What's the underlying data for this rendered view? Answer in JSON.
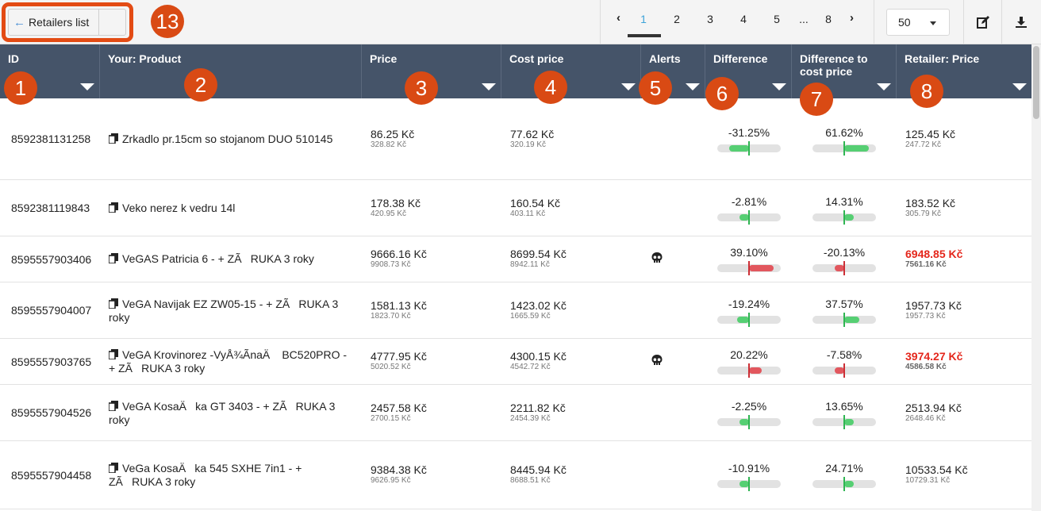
{
  "toolbar": {
    "back_label": "Retailers list",
    "per_page": "50",
    "pages": [
      "1",
      "2",
      "3",
      "4",
      "5",
      "...",
      "8"
    ],
    "active_page": "1"
  },
  "markers": [
    "1",
    "2",
    "3",
    "4",
    "5",
    "6",
    "7",
    "8",
    "13"
  ],
  "columns": [
    "ID",
    "Your: Product",
    "Price",
    "Cost price",
    "Alerts",
    "Difference",
    "Difference to cost price",
    "Retailer: Price"
  ],
  "colors": {
    "header": "#455469",
    "marker": "#d94a14",
    "positive": "#56cf73",
    "negative": "#e2575e",
    "alert_price": "#e4261b"
  },
  "rows": [
    {
      "id": "8592381131258",
      "product": "Zrkadlo pr.15cm so stojanom DUO 510145",
      "price": "86.25 Kč",
      "price_sub": "328.82 Kč",
      "cost": "77.62 Kč",
      "cost_sub": "320.19 Kč",
      "alert": "",
      "diff": "-31.25%",
      "diff_value": -31.25,
      "dcost": "61.62%",
      "dcost_value": 61.62,
      "retailer_price": "125.45 Kč",
      "retailer_sub": "247.72 Kč",
      "retailer_alert": false
    },
    {
      "id": "8592381119843",
      "product": "Veko nerez k vedru 14l",
      "price": "178.38 Kč",
      "price_sub": "420.95 Kč",
      "cost": "160.54 Kč",
      "cost_sub": "403.11 Kč",
      "alert": "",
      "diff": "-2.81%",
      "diff_value": -2.81,
      "dcost": "14.31%",
      "dcost_value": 14.31,
      "retailer_price": "183.52 Kč",
      "retailer_sub": "305.79 Kč",
      "retailer_alert": false
    },
    {
      "id": "8595557903406",
      "product": "VeGAS Patricia 6 - + ZÃRUKA 3 roky",
      "price": "9666.16 Kč",
      "price_sub": "9908.73 Kč",
      "cost": "8699.54 Kč",
      "cost_sub": "8942.11 Kč",
      "alert": "skull-icon",
      "diff": "39.10%",
      "diff_value": 39.1,
      "dcost": "-20.13%",
      "dcost_value": -20.13,
      "retailer_price": "6948.85 Kč",
      "retailer_sub": "7561.16 Kč",
      "retailer_alert": true
    },
    {
      "id": "8595557904007",
      "product": "VeGA Navijak EZ ZW05-15 - + ZÃRUKA 3 roky",
      "price": "1581.13 Kč",
      "price_sub": "1823.70 Kč",
      "cost": "1423.02 Kč",
      "cost_sub": "1665.59 Kč",
      "alert": "",
      "diff": "-19.24%",
      "diff_value": -19.24,
      "dcost": "37.57%",
      "dcost_value": 37.57,
      "retailer_price": "1957.73 Kč",
      "retailer_sub": "1957.73 Kč",
      "retailer_alert": false
    },
    {
      "id": "8595557903765",
      "product": "VeGA Krovinorez -VyÅ¾ÃnaÄ BC520PRO - + ZÃRUKA 3 roky",
      "price": "4777.95 Kč",
      "price_sub": "5020.52 Kč",
      "cost": "4300.15 Kč",
      "cost_sub": "4542.72 Kč",
      "alert": "skull-icon",
      "diff": "20.22%",
      "diff_value": 20.22,
      "dcost": "-7.58%",
      "dcost_value": -7.58,
      "retailer_price": "3974.27 Kč",
      "retailer_sub": "4586.58 Kč",
      "retailer_alert": true
    },
    {
      "id": "8595557904526",
      "product": "VeGA KosaÄka GT 3403 - + ZÃRUKA 3 roky",
      "price": "2457.58 Kč",
      "price_sub": "2700.15 Kč",
      "cost": "2211.82 Kč",
      "cost_sub": "2454.39 Kč",
      "alert": "",
      "diff": "-2.25%",
      "diff_value": -2.25,
      "dcost": "13.65%",
      "dcost_value": 13.65,
      "retailer_price": "2513.94 Kč",
      "retailer_sub": "2648.46 Kč",
      "retailer_alert": false
    },
    {
      "id": "8595557904458",
      "product": "VeGa KosaÄka 545 SXHE 7in1 - + ZÃRUKA 3 roky",
      "price": "9384.38 Kč",
      "price_sub": "9626.95 Kč",
      "cost": "8445.94 Kč",
      "cost_sub": "8688.51 Kč",
      "alert": "",
      "diff": "-10.91%",
      "diff_value": -10.91,
      "dcost": "24.71%",
      "dcost_value": 24.71,
      "retailer_price": "10533.54 Kč",
      "retailer_sub": "10729.31 Kč",
      "retailer_alert": false
    }
  ]
}
